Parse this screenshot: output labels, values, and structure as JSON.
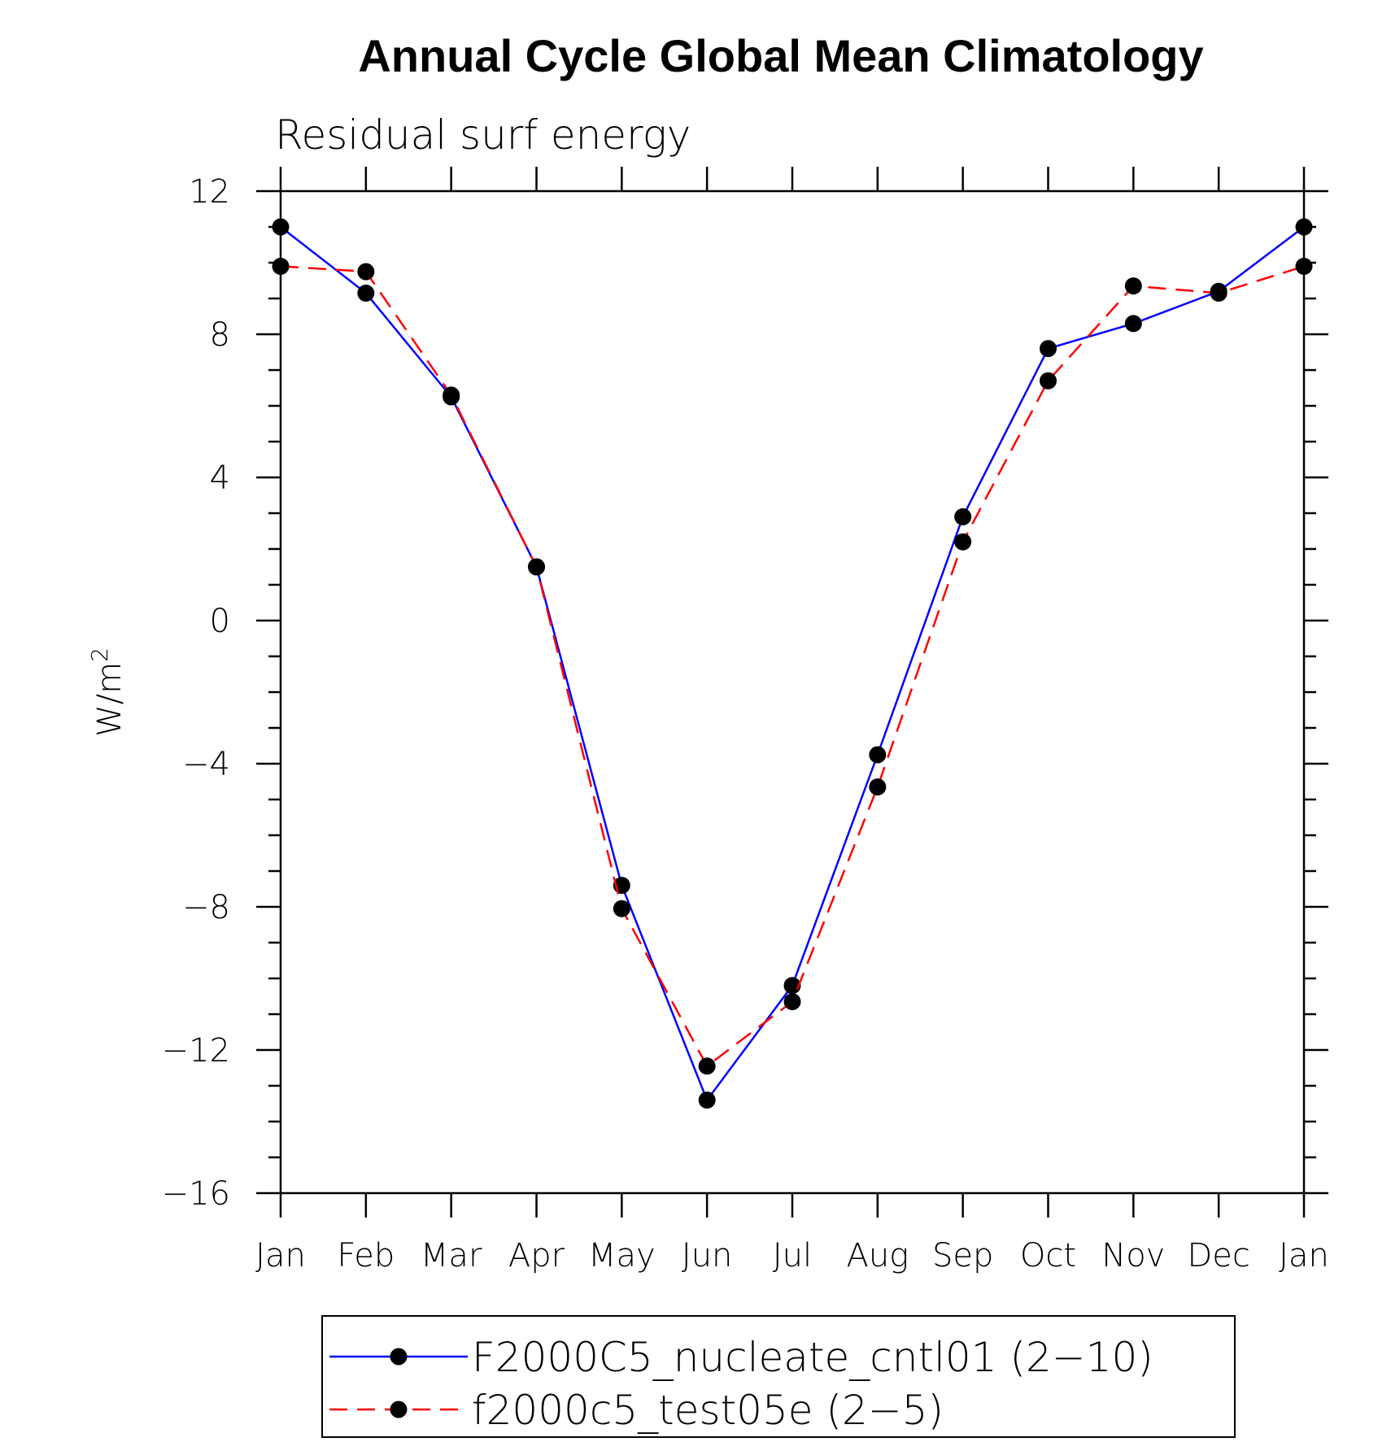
{
  "chart_data": {
    "type": "line",
    "title": "Annual Cycle Global Mean Climatology",
    "subtitle": "Residual surf energy",
    "ylabel": "W/m",
    "ylabel_sup": "2",
    "xlabel": "",
    "categories": [
      "Jan",
      "Feb",
      "Mar",
      "Apr",
      "May",
      "Jun",
      "Jul",
      "Aug",
      "Sep",
      "Oct",
      "Nov",
      "Dec",
      "Jan"
    ],
    "ylim": [
      -16,
      12
    ],
    "yticks": [
      12,
      8,
      4,
      0,
      -4,
      -8,
      -12,
      -16
    ],
    "ytick_labels": [
      "12",
      "8",
      "4",
      "0",
      "−4",
      "−8",
      "−12",
      "−16"
    ],
    "grid": false,
    "legend_position": "bottom",
    "series": [
      {
        "name": "F2000C5_nucleate_cntl01 (2−10)",
        "color": "#0000ff",
        "style": "solid",
        "marker": "circle",
        "values": [
          11.0,
          9.15,
          6.25,
          1.5,
          -7.4,
          -13.4,
          -10.2,
          -3.75,
          2.9,
          7.6,
          8.3,
          9.2,
          11.0
        ]
      },
      {
        "name": "f2000c5_test05e (2−5)",
        "color": "#ff0000",
        "style": "dashed",
        "marker": "circle",
        "values": [
          9.9,
          9.75,
          6.3,
          1.5,
          -8.05,
          -12.45,
          -10.65,
          -4.65,
          2.2,
          6.7,
          9.35,
          9.15,
          9.9
        ]
      }
    ]
  }
}
